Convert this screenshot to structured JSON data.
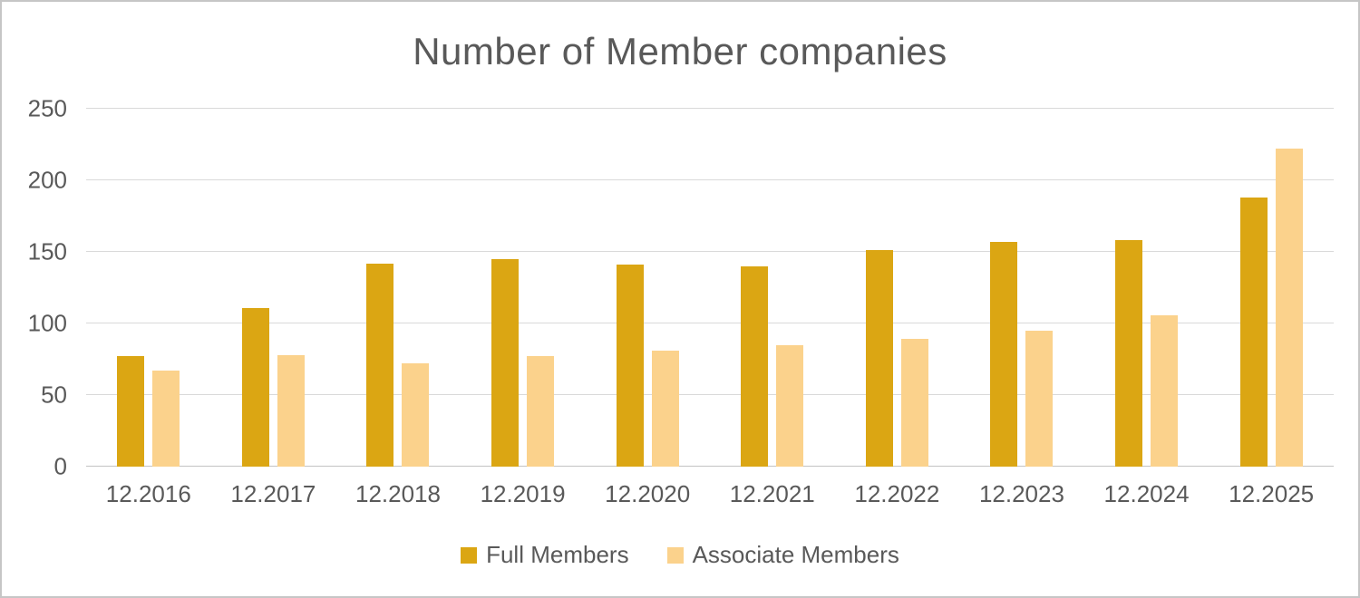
{
  "title": "Number of Member companies",
  "colors": {
    "full_members": "#DBA613",
    "associate_members": "#FBD28C",
    "gridline": "#D9D9D9",
    "axis_line": "#C3C3C3",
    "text": "#595959"
  },
  "chart_data": {
    "type": "bar",
    "title": "Number of Member companies",
    "categories": [
      "12.2016",
      "12.2017",
      "12.2018",
      "12.2019",
      "12.2020",
      "12.2021",
      "12.2022",
      "12.2023",
      "12.2024",
      "12.2025"
    ],
    "series": [
      {
        "name": "Full Members",
        "color": "#DBA613",
        "values": [
          77,
          111,
          142,
          145,
          141,
          140,
          151,
          157,
          158,
          188
        ]
      },
      {
        "name": "Associate Members",
        "color": "#FBD28C",
        "values": [
          67,
          78,
          72,
          77,
          81,
          85,
          89,
          95,
          106,
          222
        ]
      }
    ],
    "xlabel": "",
    "ylabel": "",
    "ylim": [
      0,
      250
    ],
    "yticks": [
      0,
      50,
      100,
      150,
      200,
      250
    ],
    "grid": true,
    "legend_position": "bottom"
  }
}
